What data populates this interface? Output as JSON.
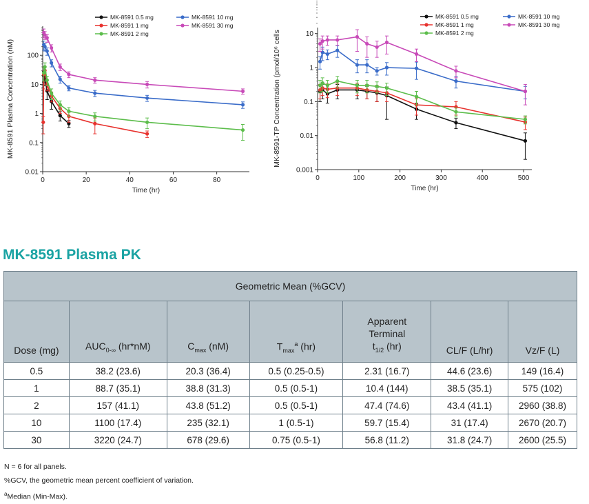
{
  "chart_data": [
    {
      "type": "line",
      "ylabel": "MK-8591 Plasma Concentration (nM)",
      "xlabel": "Time (hr)",
      "yscale": "log",
      "ylim": [
        0.01,
        1000
      ],
      "xlim": [
        0,
        95
      ],
      "xticks": [
        0,
        20,
        40,
        60,
        80
      ],
      "yticks": [
        0.01,
        0.1,
        1,
        10,
        100
      ],
      "ytick_labels": [
        "0.01",
        "0.1",
        "1",
        "10",
        "100"
      ],
      "legend_position": "top-right",
      "series": [
        {
          "name": "MK-8591 0.5 mg",
          "color": "#111111",
          "x": [
            0.5,
            1,
            2,
            4,
            8,
            12
          ],
          "y": [
            20,
            15,
            6,
            2.6,
            0.85,
            0.45
          ],
          "err": [
            8,
            6,
            3,
            1.2,
            0.3,
            0.12
          ]
        },
        {
          "name": "MK-8591 1 mg",
          "color": "#e8322e",
          "x": [
            0.25,
            0.5,
            1,
            2,
            4,
            8,
            12,
            24,
            48
          ],
          "y": [
            0.5,
            22,
            30,
            10,
            4,
            1.5,
            0.8,
            0.45,
            0.2
          ],
          "err": [
            0.3,
            15,
            10,
            4,
            1.5,
            0.5,
            0.3,
            0.25,
            0.05
          ]
        },
        {
          "name": "MK-8591 2 mg",
          "color": "#5cbd4b",
          "x": [
            0.5,
            1,
            2,
            4,
            8,
            12,
            24,
            48,
            92
          ],
          "y": [
            25,
            40,
            14,
            5,
            2,
            1.2,
            0.8,
            0.5,
            0.27
          ],
          "err": [
            12,
            15,
            5,
            2,
            0.7,
            0.4,
            0.25,
            0.2,
            0.15
          ]
        },
        {
          "name": "MK-8591 10 mg",
          "color": "#3a6cc9",
          "x": [
            0.5,
            1,
            2,
            4,
            8,
            12,
            24,
            48,
            92
          ],
          "y": [
            230,
            200,
            140,
            55,
            15,
            7.5,
            5,
            3.4,
            2
          ],
          "err": [
            80,
            60,
            40,
            15,
            4,
            1.5,
            1.2,
            0.8,
            0.5
          ]
        },
        {
          "name": "MK-8591 30 mg",
          "color": "#c84ab8",
          "x": [
            0.5,
            1,
            2,
            4,
            8,
            12,
            24,
            48,
            92
          ],
          "y": [
            600,
            500,
            400,
            180,
            40,
            22,
            14,
            10,
            5.8
          ],
          "err": [
            200,
            150,
            120,
            50,
            10,
            5,
            3,
            2.5,
            1.2
          ]
        }
      ]
    },
    {
      "type": "line",
      "ylabel": "MK-8591-TP Concentration (pmol/10⁶ cells",
      "xlabel": "Time (hr)",
      "yscale": "log",
      "ylim": [
        0.001,
        15
      ],
      "xlim": [
        0,
        520
      ],
      "xticks": [
        0,
        100,
        200,
        300,
        400,
        500
      ],
      "yticks": [
        0.001,
        0.01,
        0.1,
        1,
        10
      ],
      "ytick_labels": [
        "0.001",
        "0.01",
        "0.1",
        "1",
        "10"
      ],
      "legend_position": "top-right",
      "series": [
        {
          "name": "MK-8591 0.5 mg",
          "color": "#111111",
          "x": [
            6,
            12,
            24,
            48,
            96,
            120,
            144,
            168,
            240,
            336,
            504
          ],
          "y": [
            0.2,
            0.22,
            0.17,
            0.22,
            0.22,
            0.2,
            0.18,
            0.15,
            0.06,
            0.024,
            0.007
          ],
          "err": [
            0.1,
            0.1,
            0.08,
            0.1,
            0.1,
            0.08,
            0.08,
            0.12,
            0.03,
            0.008,
            0.005
          ]
        },
        {
          "name": "MK-8591 1 mg",
          "color": "#e8322e",
          "x": [
            6,
            12,
            24,
            48,
            96,
            120,
            144,
            168,
            240,
            336,
            504
          ],
          "y": [
            0.22,
            0.25,
            0.23,
            0.25,
            0.25,
            0.22,
            0.2,
            0.18,
            0.08,
            0.07,
            0.025
          ],
          "err": [
            0.1,
            0.1,
            0.1,
            0.1,
            0.1,
            0.1,
            0.1,
            0.08,
            0.04,
            0.03,
            0.01
          ]
        },
        {
          "name": "MK-8591 2 mg",
          "color": "#5cbd4b",
          "x": [
            6,
            12,
            24,
            48,
            96,
            120,
            144,
            168,
            240,
            336,
            504
          ],
          "y": [
            0.3,
            0.35,
            0.3,
            0.4,
            0.3,
            0.3,
            0.28,
            0.25,
            0.14,
            0.05,
            0.03
          ],
          "err": [
            0.12,
            0.15,
            0.12,
            0.15,
            0.12,
            0.12,
            0.1,
            0.1,
            0.06,
            0.015,
            0.008
          ]
        },
        {
          "name": "MK-8591 10 mg",
          "color": "#3a6cc9",
          "x": [
            6,
            12,
            24,
            48,
            96,
            120,
            144,
            168,
            240,
            336,
            504
          ],
          "y": [
            1.5,
            2.8,
            2.5,
            3.2,
            1.2,
            1.2,
            0.8,
            1,
            0.95,
            0.4,
            0.2
          ],
          "err": [
            0.6,
            1.2,
            0.8,
            1.2,
            0.5,
            0.5,
            0.2,
            0.4,
            0.5,
            0.15,
            0.08
          ]
        },
        {
          "name": "MK-8591 30 mg",
          "color": "#c84ab8",
          "x": [
            6,
            12,
            24,
            48,
            96,
            120,
            144,
            168,
            240,
            336,
            504
          ],
          "y": [
            5,
            6,
            6.5,
            6.5,
            8,
            5,
            4,
            5.5,
            2.5,
            0.8,
            0.2
          ],
          "err": [
            2,
            2.5,
            2,
            2,
            5,
            3,
            2,
            3,
            1,
            0.3,
            0.12
          ]
        }
      ]
    }
  ],
  "section_title": "MK-8591 Plasma PK",
  "table": {
    "group_header": "Geometric Mean (%GCV)",
    "columns": {
      "dose": "Dose (mg)",
      "auc_main": "AUC",
      "auc_sub": "0-∞",
      "auc_unit": " (hr*nM)",
      "cmax_main": "C",
      "cmax_sub": "max",
      "cmax_unit": " (nM)",
      "tmax_main": "T",
      "tmax_sub": "max",
      "tmax_sup": "a",
      "tmax_unit": " (hr)",
      "thalf_line1": "Apparent",
      "thalf_line2": "Terminal",
      "thalf_main": "t",
      "thalf_sub": "1/2",
      "thalf_unit": " (hr)",
      "clf": "CL/F (L/hr)",
      "vzf": "Vz/F (L)"
    },
    "rows": [
      [
        "0.5",
        "38.2 (23.6)",
        "20.3 (36.4)",
        "0.5 (0.25-0.5)",
        "2.31 (16.7)",
        "44.6 (23.6)",
        "149 (16.4)"
      ],
      [
        "1",
        "88.7 (35.1)",
        "38.8 (31.3)",
        "0.5 (0.5-1)",
        "10.4 (144)",
        "38.5 (35.1)",
        "575 (102)"
      ],
      [
        "2",
        "157 (41.1)",
        "43.8 (51.2)",
        "0.5 (0.5-1)",
        "47.4 (74.6)",
        "43.4 (41.1)",
        "2960 (38.8)"
      ],
      [
        "10",
        "1100 (17.4)",
        "235 (32.1)",
        "1 (0.5-1)",
        "59.7 (15.4)",
        "31 (17.4)",
        "2670 (20.7)"
      ],
      [
        "30",
        "3220 (24.7)",
        "678 (29.6)",
        "0.75 (0.5-1)",
        "56.8 (11.2)",
        "31.8 (24.7)",
        "2600 (25.5)"
      ]
    ]
  },
  "footnotes": {
    "line1": "N = 6 for all panels.",
    "line2": "%GCV, the geometric mean percent coefficient of variation.",
    "line3_sup": "a",
    "line3": "Median (Min-Max)."
  }
}
